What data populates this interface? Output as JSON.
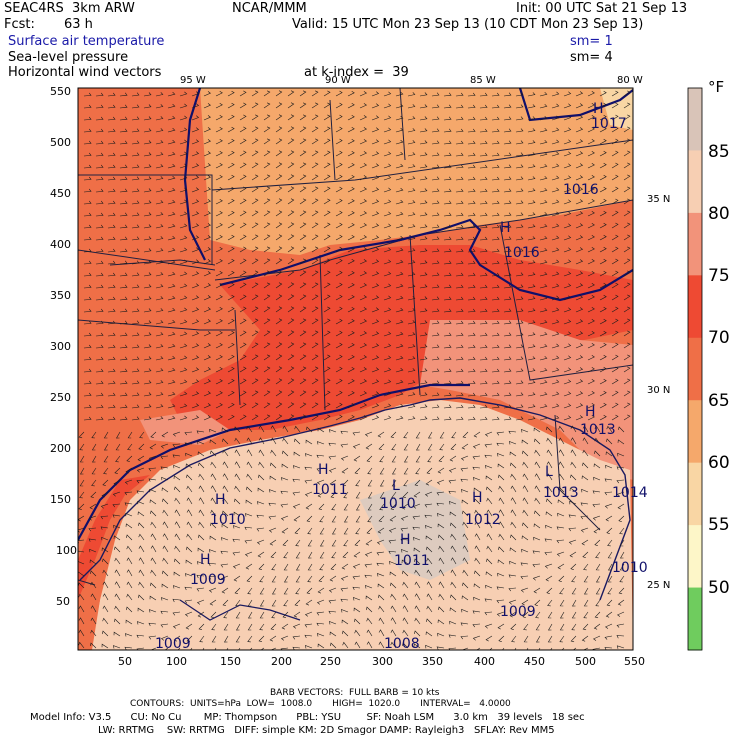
{
  "header": {
    "model": "SEAC4RS  3km ARW",
    "org": "NCAR/MMM",
    "init": "Init: 00 UTC Sat 21 Sep 13",
    "fcst_label": "Fcst:",
    "fcst_value": "63 h",
    "valid": "Valid: 15 UTC Mon 23 Sep 13 (10 CDT Mon 23 Sep 13)",
    "fields": [
      {
        "name": "Surface air temperature",
        "sm": "sm= 1",
        "color": "#1a1aa8"
      },
      {
        "name": "Sea-level pressure",
        "sm": "sm= 4",
        "color": "#000000"
      },
      {
        "name": "Horizontal wind vectors",
        "sm": "",
        "color": "#000000"
      }
    ],
    "level": "at k-index =  39"
  },
  "map": {
    "x_ticks": [
      "50",
      "100",
      "150",
      "200",
      "250",
      "300",
      "350",
      "400",
      "450",
      "500",
      "550"
    ],
    "y_ticks": [
      "550",
      "500",
      "450",
      "400",
      "350",
      "300",
      "250",
      "200",
      "150",
      "100",
      "50"
    ],
    "lon_labels": [
      "95 W",
      "90 W",
      "85 W",
      "80 W"
    ],
    "lat_labels": [
      "35 N",
      "30 N",
      "25 N"
    ],
    "highs": [
      "H",
      "H",
      "H",
      "H",
      "H",
      "H",
      "H",
      "H"
    ],
    "pressure_labels": [
      "1017",
      "1016",
      "1016",
      "1013",
      "1011",
      "1010",
      "1010",
      "1012",
      "1013",
      "1014",
      "1011",
      "1009",
      "1009",
      "1010",
      "1009",
      "1008"
    ],
    "low_labels": [
      "L",
      "L"
    ]
  },
  "colorbar": {
    "unit": "°F",
    "labels": [
      "85",
      "80",
      "75",
      "70",
      "65",
      "60",
      "55",
      "50"
    ],
    "colors": [
      "#d9c4b8",
      "#f7cfb3",
      "#f2937a",
      "#ee4a33",
      "#ef6f47",
      "#f5a86b",
      "#f9d6a4",
      "#fdf6c8",
      "#6fcc5e"
    ]
  },
  "footer": {
    "barb": "BARB VECTORS:  FULL BARB = 10 kts",
    "contours": "CONTOURS:  UNITS=hPa  LOW=  1008.0       HIGH=  1020.0       INTERVAL=   4.0000",
    "info1": "Model Info: V3.5      CU: No Cu       MP: Thompson      PBL: YSU        SF: Noah LSM      3.0 km   39 levels   18 sec",
    "info2": "LW: RRTMG    SW: RRTMG   DIFF: simple KM: 2D Smagor DAMP: Rayleigh3   SFLAY: Rev MM5"
  }
}
